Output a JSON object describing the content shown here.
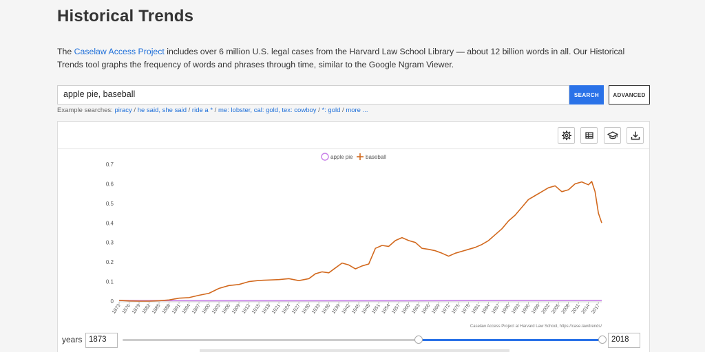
{
  "page": {
    "title": "Historical Trends",
    "intro_prefix": "The ",
    "intro_link": "Caselaw Access Project",
    "intro_suffix": " includes over 6 million U.S. legal cases from the Harvard Law School Library — about 12 billion words in all. Our Historical Trends tool graphs the frequency of words and phrases through time, similar to the Google Ngram Viewer."
  },
  "search": {
    "value": "apple pie, baseball",
    "search_label": "SEARCH",
    "advanced_label": "ADVANCED"
  },
  "examples": {
    "label": "Example searches: ",
    "items": [
      "piracy",
      "he said, she said",
      "ride a *",
      "me: lobster, cal: gold, tex: cowboy",
      "*: gold",
      "more ..."
    ]
  },
  "toolbar": {
    "icons": [
      "gear-icon",
      "table-icon",
      "graduation-cap-icon",
      "download-icon"
    ]
  },
  "chart_data": {
    "type": "line",
    "title": "",
    "xlabel": "",
    "ylabel": "",
    "ylim": [
      0,
      0.7
    ],
    "yticks": [
      "0",
      "0.1",
      "0.2",
      "0.3",
      "0.4",
      "0.5",
      "0.6",
      "0.7"
    ],
    "xticks": [
      "1873",
      "1876",
      "1879",
      "1882",
      "1885",
      "1888",
      "1891",
      "1894",
      "1897",
      "1900",
      "1903",
      "1906",
      "1909",
      "1912",
      "1915",
      "1918",
      "1921",
      "1924",
      "1927",
      "1930",
      "1933",
      "1936",
      "1939",
      "1942",
      "1945",
      "1948",
      "1951",
      "1954",
      "1957",
      "1960",
      "1963",
      "1966",
      "1969",
      "1972",
      "1975",
      "1978",
      "1981",
      "1984",
      "1987",
      "1990",
      "1993",
      "1996",
      "1999",
      "2002",
      "2005",
      "2008",
      "2011",
      "2014",
      "2017"
    ],
    "legend_position": "top-center",
    "source_note": "Caselaw Access Project at Harvard Law School, https://case.law/trends/",
    "series": [
      {
        "name": "apple pie",
        "color": "#c77ee8",
        "marker": "circle",
        "x": [
          1873,
          1900,
          1930,
          1960,
          1990,
          2018
        ],
        "y": [
          0.003,
          0.002,
          0.002,
          0.002,
          0.003,
          0.003
        ]
      },
      {
        "name": "baseball",
        "color": "#d2691e",
        "marker": "plus",
        "x": [
          1873,
          1876,
          1879,
          1882,
          1885,
          1888,
          1891,
          1894,
          1897,
          1900,
          1903,
          1906,
          1909,
          1912,
          1915,
          1918,
          1921,
          1924,
          1927,
          1930,
          1932,
          1934,
          1936,
          1938,
          1940,
          1942,
          1944,
          1946,
          1948,
          1950,
          1952,
          1954,
          1956,
          1958,
          1960,
          1962,
          1964,
          1966,
          1968,
          1970,
          1972,
          1974,
          1976,
          1978,
          1980,
          1982,
          1984,
          1986,
          1988,
          1990,
          1992,
          1994,
          1996,
          1998,
          2000,
          2002,
          2004,
          2006,
          2008,
          2010,
          2012,
          2014,
          2015,
          2016,
          2017,
          2018
        ],
        "y": [
          0.004,
          0.001,
          0.0,
          0.0,
          0.002,
          0.006,
          0.015,
          0.018,
          0.03,
          0.04,
          0.065,
          0.08,
          0.085,
          0.1,
          0.106,
          0.108,
          0.11,
          0.115,
          0.105,
          0.115,
          0.14,
          0.15,
          0.145,
          0.17,
          0.195,
          0.185,
          0.165,
          0.18,
          0.19,
          0.27,
          0.285,
          0.28,
          0.31,
          0.325,
          0.31,
          0.3,
          0.27,
          0.265,
          0.258,
          0.245,
          0.23,
          0.245,
          0.255,
          0.265,
          0.275,
          0.29,
          0.31,
          0.34,
          0.37,
          0.41,
          0.44,
          0.48,
          0.52,
          0.54,
          0.56,
          0.58,
          0.59,
          0.56,
          0.57,
          0.6,
          0.61,
          0.595,
          0.612,
          0.56,
          0.45,
          0.4
        ]
      }
    ]
  },
  "years": {
    "label": "years",
    "start": "1873",
    "end": "2018",
    "min": 1640,
    "max": 2018
  }
}
